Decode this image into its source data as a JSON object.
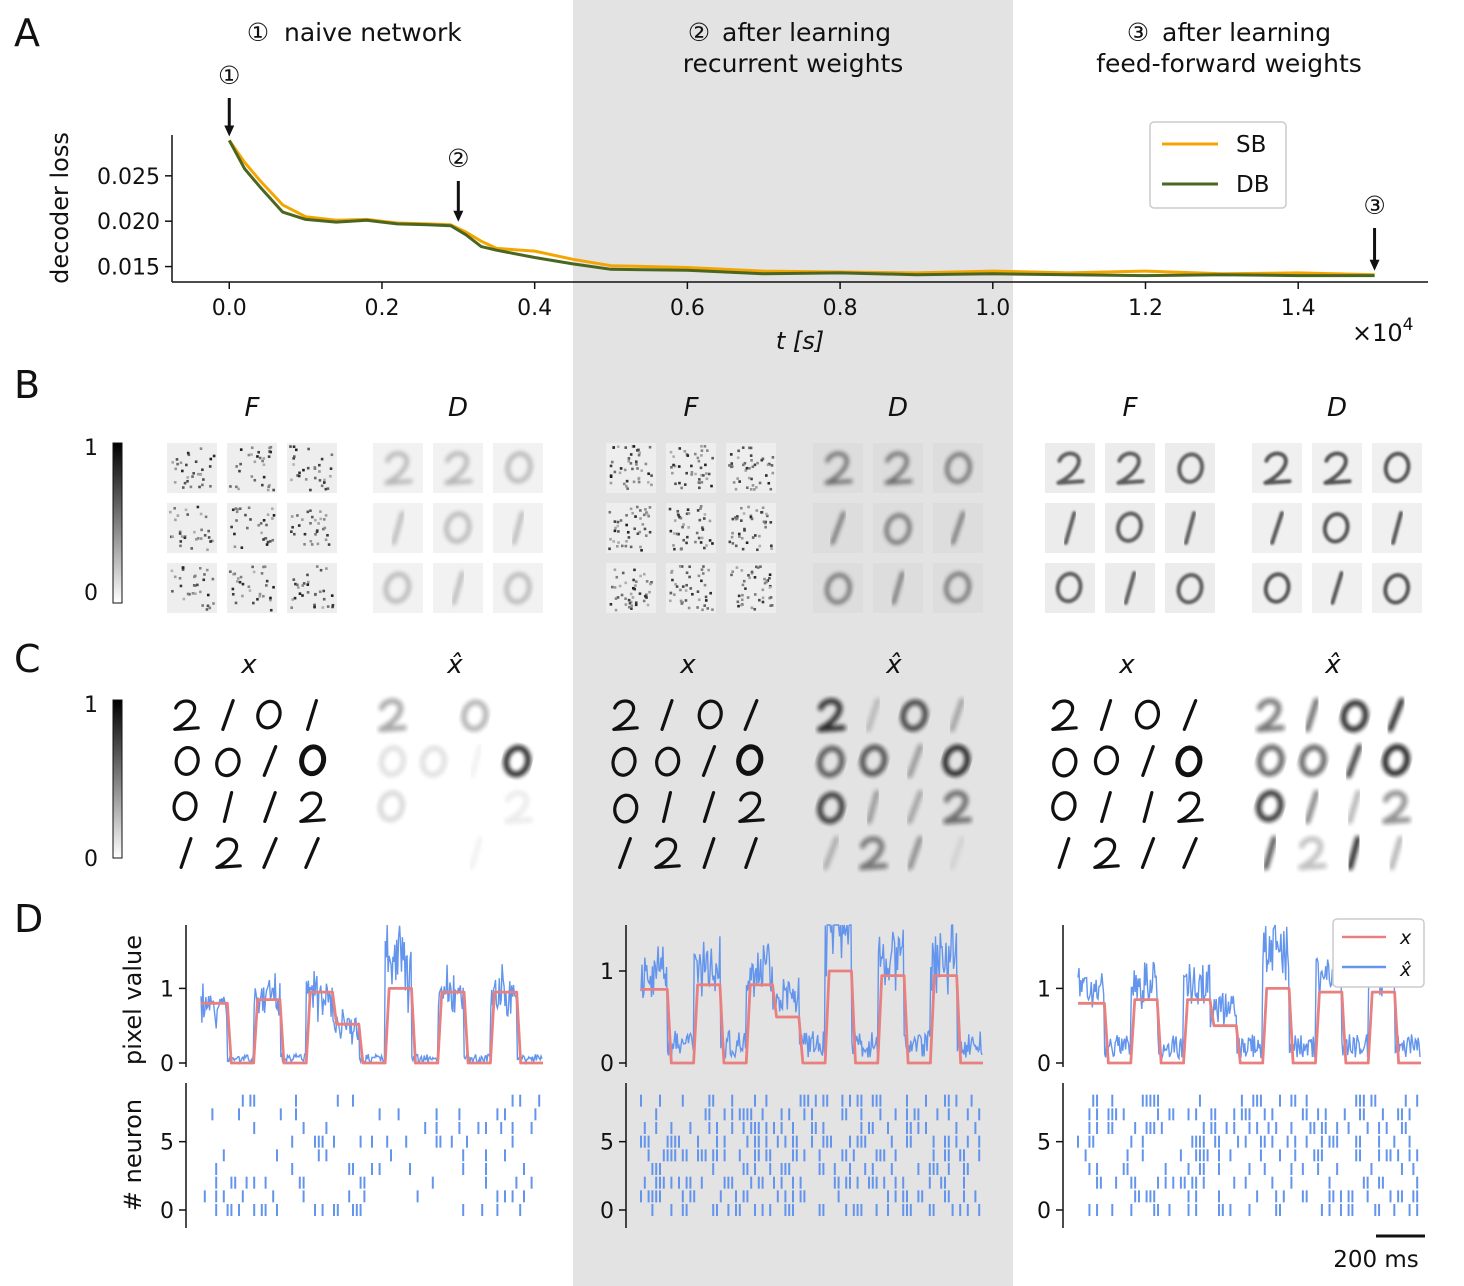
{
  "panel_letters": [
    "A",
    "B",
    "C",
    "D"
  ],
  "stages": [
    {
      "marker": "①",
      "title_lines": [
        "naive network"
      ]
    },
    {
      "marker": "②",
      "title_lines": [
        "after learning",
        "recurrent weights"
      ]
    },
    {
      "marker": "③",
      "title_lines": [
        "after learning",
        "feed-forward weights"
      ]
    }
  ],
  "markers": [
    "①",
    "②",
    "③"
  ],
  "colors": {
    "SB": "#f5a500",
    "DB": "#4a6620",
    "x": "#e8807f",
    "xhat": "#6495ed",
    "shade": "#e3e3e3"
  },
  "chart_data": [
    {
      "type": "line",
      "panel": "A",
      "xlabel": "t [s]",
      "ylabel": "decoder loss",
      "x_scale_note": "×10",
      "x_scale_exp": "4",
      "xticks": [
        0.0,
        0.2,
        0.4,
        0.6,
        0.8,
        1.0,
        1.2,
        1.4
      ],
      "xtick_labels": [
        "0.0",
        "0.2",
        "0.4",
        "0.6",
        "0.8",
        "1.0",
        "1.2",
        "1.4"
      ],
      "yticks": [
        0.015,
        0.02,
        0.025
      ],
      "ytick_labels": [
        "0.015",
        "0.020",
        "0.025"
      ],
      "xlim": [
        -0.075,
        1.57
      ],
      "ylim": [
        0.0133,
        0.0295
      ],
      "legend_position": "top-right",
      "marker_positions": [
        [
          0.0,
          0.0289
        ],
        [
          0.3,
          0.0195
        ],
        [
          1.5,
          0.0141
        ]
      ],
      "series": [
        {
          "name": "SB",
          "x": [
            0.0,
            0.02,
            0.04,
            0.07,
            0.1,
            0.14,
            0.18,
            0.22,
            0.26,
            0.29,
            0.31,
            0.33,
            0.35,
            0.4,
            0.45,
            0.5,
            0.6,
            0.7,
            0.8,
            0.9,
            1.0,
            1.1,
            1.2,
            1.3,
            1.4,
            1.5
          ],
          "y": [
            0.0289,
            0.0265,
            0.0245,
            0.0218,
            0.0205,
            0.0201,
            0.0202,
            0.0198,
            0.0197,
            0.0196,
            0.0188,
            0.0178,
            0.017,
            0.0167,
            0.0158,
            0.0151,
            0.0149,
            0.0145,
            0.0144,
            0.0143,
            0.0145,
            0.0143,
            0.0145,
            0.0142,
            0.0143,
            0.0141
          ]
        },
        {
          "name": "DB",
          "x": [
            0.0,
            0.02,
            0.04,
            0.07,
            0.1,
            0.14,
            0.18,
            0.22,
            0.26,
            0.29,
            0.31,
            0.33,
            0.35,
            0.4,
            0.45,
            0.5,
            0.6,
            0.7,
            0.8,
            0.9,
            1.0,
            1.1,
            1.2,
            1.3,
            1.4,
            1.5
          ],
          "y": [
            0.0289,
            0.0258,
            0.0238,
            0.021,
            0.0202,
            0.0199,
            0.0201,
            0.0197,
            0.0196,
            0.0195,
            0.0185,
            0.0172,
            0.0168,
            0.016,
            0.0153,
            0.0147,
            0.0146,
            0.0142,
            0.0143,
            0.0141,
            0.0142,
            0.0141,
            0.014,
            0.0141,
            0.014,
            0.014
          ]
        }
      ]
    },
    {
      "type": "heatmap",
      "panel": "B",
      "group_labels": [
        "F",
        "D"
      ],
      "colorbar": {
        "ticks": [
          "1",
          "0"
        ]
      },
      "grid": [
        3,
        3
      ]
    },
    {
      "type": "heatmap",
      "panel": "C",
      "group_labels": [
        "x",
        "x̂"
      ],
      "colorbar": {
        "ticks": [
          "1",
          "0"
        ]
      },
      "grid": [
        4,
        4
      ],
      "digit_rows": [
        [
          "2",
          "1",
          "0",
          "1"
        ],
        [
          "0",
          "0",
          "1",
          "0"
        ],
        [
          "0",
          "1",
          "1",
          "2"
        ],
        [
          "1",
          "2",
          "1",
          "1"
        ]
      ]
    },
    {
      "type": "line",
      "panel": "D-top",
      "ylabel": "pixel value",
      "yticks": [
        0,
        1
      ],
      "ylim": [
        0,
        1.85
      ],
      "ylim_middle": [
        0,
        1.5
      ],
      "legend_entries": [
        "x",
        "x̂"
      ],
      "legend_position": "top-right",
      "x_segments": [
        [
          0.8,
          0.0,
          0.85,
          0.0,
          0.95,
          0.52,
          0.0,
          1.0,
          0.0,
          0.95,
          0.0,
          0.95,
          0.0
        ],
        [
          0.8,
          0.0,
          0.85,
          0.0,
          0.85,
          0.5,
          0.0,
          1.0,
          0.0,
          0.95,
          0.0,
          0.95,
          0.0
        ],
        [
          0.8,
          0.0,
          0.85,
          0.0,
          0.85,
          0.5,
          0.0,
          1.0,
          0.0,
          0.95,
          0.0,
          0.95,
          0.0
        ]
      ],
      "xhat_level": [
        0.25,
        0.5,
        0.55
      ]
    },
    {
      "type": "scatter",
      "panel": "D-bottom",
      "ylabel": "# neuron",
      "yticks": [
        0,
        5
      ],
      "ylim": [
        -0.5,
        9
      ]
    }
  ],
  "scalebar": {
    "label": "200 ms"
  }
}
